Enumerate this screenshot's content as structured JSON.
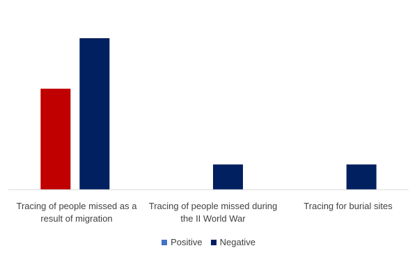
{
  "chart_data": {
    "type": "bar",
    "title": "",
    "xlabel": "",
    "ylabel": "",
    "categories": [
      "Tracing of people missed as a result of migration",
      "Tracing of people missed during the II World War",
      "Tracing for burial sites"
    ],
    "series": [
      {
        "name": "Positive",
        "values": [
          4,
          0,
          0
        ],
        "color": "#c00000",
        "legend_color": "#4472c4"
      },
      {
        "name": "Negative",
        "values": [
          6,
          1,
          1
        ],
        "color": "#002060",
        "legend_color": "#002060"
      }
    ],
    "ylim": [
      0,
      6
    ],
    "grid": false,
    "legend_position": "bottom"
  }
}
